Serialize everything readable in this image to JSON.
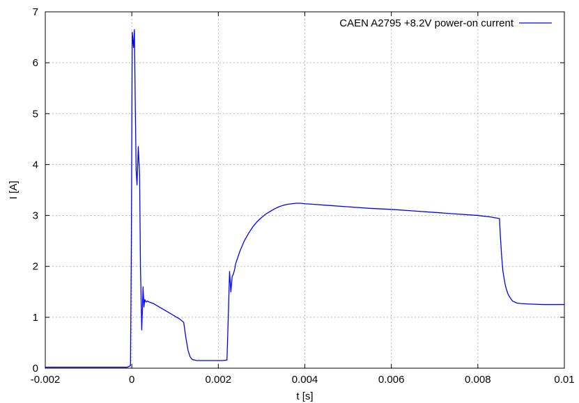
{
  "chart_data": {
    "type": "line",
    "title": "",
    "xlabel": "t [s]",
    "ylabel": "I [A]",
    "xlim": [
      -0.002,
      0.01
    ],
    "ylim": [
      0,
      7
    ],
    "xticks": [
      -0.002,
      0,
      0.002,
      0.004,
      0.006,
      0.008,
      0.01
    ],
    "xtick_labels": [
      "-0.002",
      "0",
      "0.002",
      "0.004",
      "0.006",
      "0.008",
      "0.01"
    ],
    "yticks": [
      0,
      1,
      2,
      3,
      4,
      5,
      6,
      7
    ],
    "ytick_labels": [
      "0",
      "1",
      "2",
      "3",
      "4",
      "5",
      "6",
      "7"
    ],
    "grid": true,
    "legend_position": "top-right",
    "series": [
      {
        "name": "CAEN A2795 +8.2V power-on current",
        "color": "#0000ff",
        "x": [
          -0.002,
          -0.0015,
          -0.001,
          -0.0005,
          -0.0001,
          -3e-05,
          -1e-05,
          1e-05,
          4e-05,
          6e-05,
          8e-05,
          0.0001,
          0.00012,
          0.00015,
          0.00018,
          0.0002,
          0.00023,
          0.00026,
          0.00028,
          0.0003,
          0.00033,
          0.00036,
          0.0004,
          0.0005,
          0.0006,
          0.0007,
          0.0008,
          0.0009,
          0.001,
          0.0011,
          0.0012,
          0.00125,
          0.0013,
          0.00135,
          0.0014,
          0.0015,
          0.0016,
          0.0018,
          0.002,
          0.0021,
          0.0022,
          0.00223,
          0.00226,
          0.00229,
          0.00232,
          0.00235,
          0.00238,
          0.0024,
          0.0025,
          0.0026,
          0.0027,
          0.0028,
          0.0029,
          0.003,
          0.0031,
          0.0032,
          0.0033,
          0.0034,
          0.0035,
          0.0036,
          0.0037,
          0.0038,
          0.0039,
          0.004,
          0.0042,
          0.0045,
          0.005,
          0.0055,
          0.006,
          0.0065,
          0.007,
          0.0075,
          0.008,
          0.0083,
          0.0085,
          0.00852,
          0.00855,
          0.00858,
          0.0086,
          0.00863,
          0.00866,
          0.0087,
          0.00875,
          0.0088,
          0.0089,
          0.009,
          0.0092,
          0.0095,
          0.0098,
          0.01
        ],
        "y": [
          0.02,
          0.02,
          0.02,
          0.02,
          0.02,
          0.05,
          2.5,
          6.6,
          6.3,
          6.65,
          5.2,
          3.9,
          3.6,
          4.35,
          3.8,
          2.0,
          0.75,
          1.6,
          1.2,
          1.35,
          1.3,
          1.32,
          1.3,
          1.27,
          1.22,
          1.17,
          1.12,
          1.07,
          1.02,
          0.97,
          0.9,
          0.6,
          0.35,
          0.22,
          0.17,
          0.15,
          0.15,
          0.15,
          0.15,
          0.15,
          0.16,
          1.0,
          1.9,
          1.5,
          1.8,
          1.85,
          1.95,
          2.05,
          2.3,
          2.5,
          2.65,
          2.78,
          2.88,
          2.96,
          3.03,
          3.08,
          3.13,
          3.17,
          3.2,
          3.22,
          3.23,
          3.24,
          3.24,
          3.23,
          3.22,
          3.2,
          3.17,
          3.14,
          3.12,
          3.09,
          3.06,
          3.03,
          3.0,
          2.97,
          2.94,
          2.6,
          2.2,
          1.9,
          1.8,
          1.65,
          1.55,
          1.45,
          1.38,
          1.32,
          1.28,
          1.27,
          1.26,
          1.25,
          1.25,
          1.25
        ]
      }
    ]
  }
}
